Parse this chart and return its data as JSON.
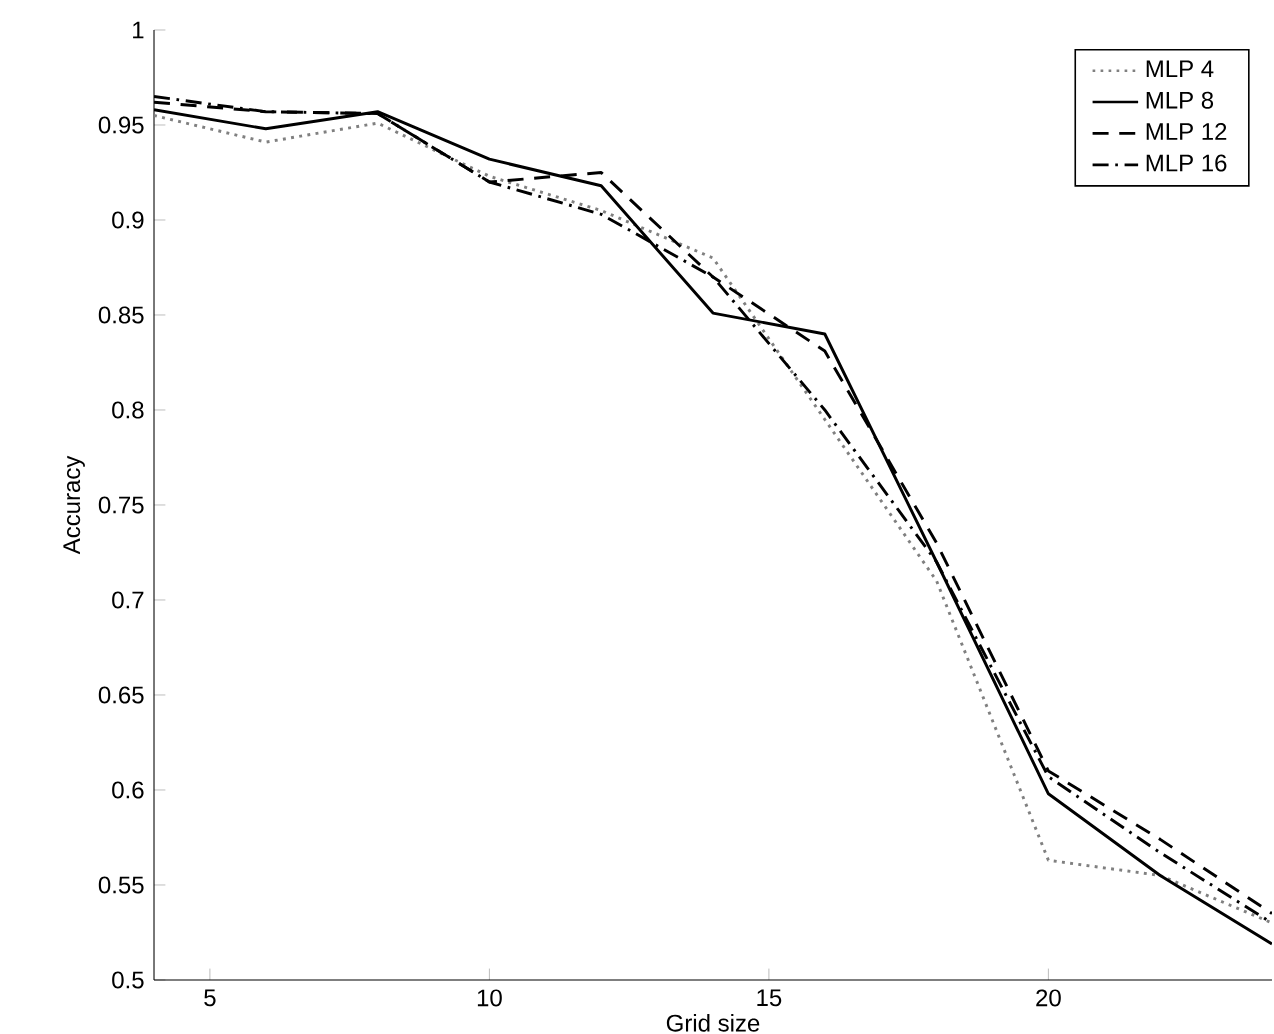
{
  "chart_data": {
    "type": "line",
    "xlabel": "Grid size",
    "ylabel": "Accuracy",
    "x": [
      4,
      6,
      8,
      10,
      12,
      14,
      16,
      18,
      20,
      22,
      24
    ],
    "series": [
      {
        "name": "MLP 4",
        "color": "#808080",
        "line_style": "dotted",
        "values": [
          0.955,
          0.941,
          0.951,
          0.923,
          0.905,
          0.88,
          0.795,
          0.71,
          0.563,
          0.555,
          0.53
        ]
      },
      {
        "name": "MLP 8",
        "color": "#000000",
        "line_style": "solid",
        "values": [
          0.958,
          0.948,
          0.957,
          0.932,
          0.918,
          0.851,
          0.84,
          0.72,
          0.598,
          0.555,
          0.519
        ]
      },
      {
        "name": "MLP 12",
        "color": "#000000",
        "line_style": "dashed",
        "values": [
          0.962,
          0.957,
          0.956,
          0.92,
          0.925,
          0.87,
          0.831,
          0.73,
          0.61,
          0.574,
          0.535
        ]
      },
      {
        "name": "MLP 16",
        "color": "#000000",
        "line_style": "dashdot",
        "values": [
          0.965,
          0.957,
          0.956,
          0.92,
          0.903,
          0.87,
          0.8,
          0.72,
          0.607,
          0.567,
          0.53
        ]
      }
    ],
    "xlim": [
      4,
      24
    ],
    "xticks": [
      5,
      10,
      15,
      20
    ],
    "ylim": [
      0.5,
      1
    ],
    "yticks": [
      0.5,
      0.55,
      0.6,
      0.65,
      0.7,
      0.75,
      0.8,
      0.85,
      0.9,
      0.95,
      1
    ],
    "grid": false,
    "legend": "top right",
    "marker": "none"
  }
}
